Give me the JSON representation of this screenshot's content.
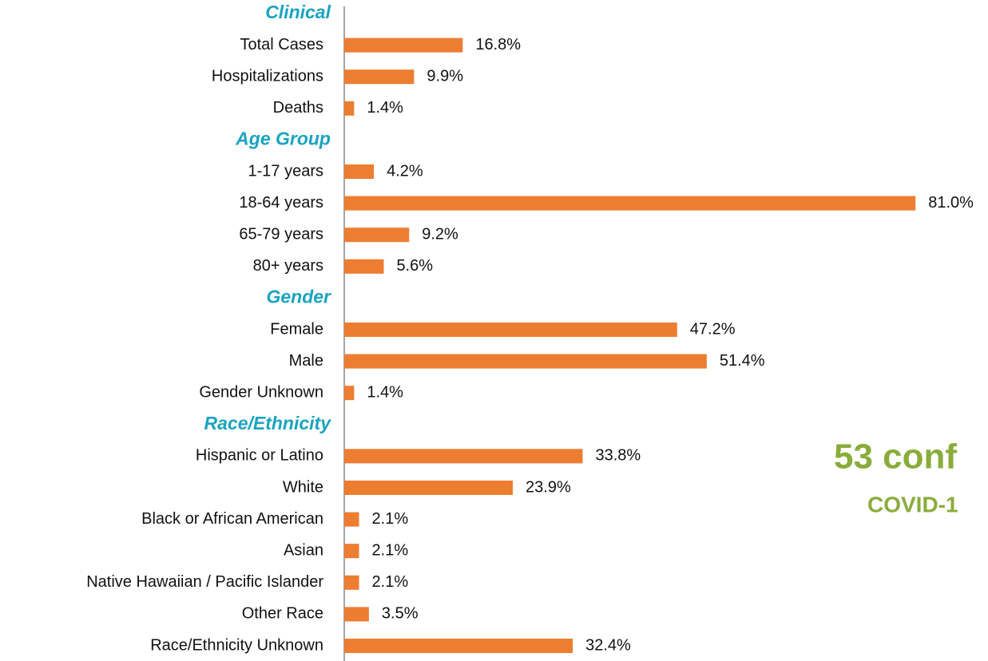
{
  "chart_data": {
    "type": "bar",
    "orientation": "horizontal",
    "color": "#ed7d31",
    "groups": [
      {
        "name": "Clinical",
        "categories": [
          "Total Cases",
          "Hospitalizations",
          "Deaths"
        ],
        "values": [
          16.8,
          9.9,
          1.4
        ],
        "value_labels": [
          "16.8%",
          "9.9%",
          "1.4%"
        ]
      },
      {
        "name": "Age Group",
        "categories": [
          "1-17 years",
          "18-64 years",
          "65-79 years",
          "80+ years"
        ],
        "values": [
          4.2,
          81.0,
          9.2,
          5.6
        ],
        "value_labels": [
          "4.2%",
          "81.0%",
          "9.2%",
          "5.6%"
        ]
      },
      {
        "name": "Gender",
        "categories": [
          "Female",
          "Male",
          "Gender Unknown"
        ],
        "values": [
          47.2,
          51.4,
          1.4
        ],
        "value_labels": [
          "47.2%",
          "51.4%",
          "1.4%"
        ]
      },
      {
        "name": "Race/Ethnicity",
        "categories": [
          "Hispanic or Latino",
          "White",
          "Black or African American",
          "Asian",
          "Native Hawaiian / Pacific Islander",
          "Other Race",
          "Race/Ethnicity Unknown"
        ],
        "values": [
          33.8,
          23.9,
          2.1,
          2.1,
          2.1,
          3.5,
          32.4
        ],
        "value_labels": [
          "33.8%",
          "23.9%",
          "2.1%",
          "2.1%",
          "2.1%",
          "3.5%",
          "32.4%"
        ]
      }
    ],
    "annotations": [
      "53 conf",
      "COVID-1"
    ]
  }
}
